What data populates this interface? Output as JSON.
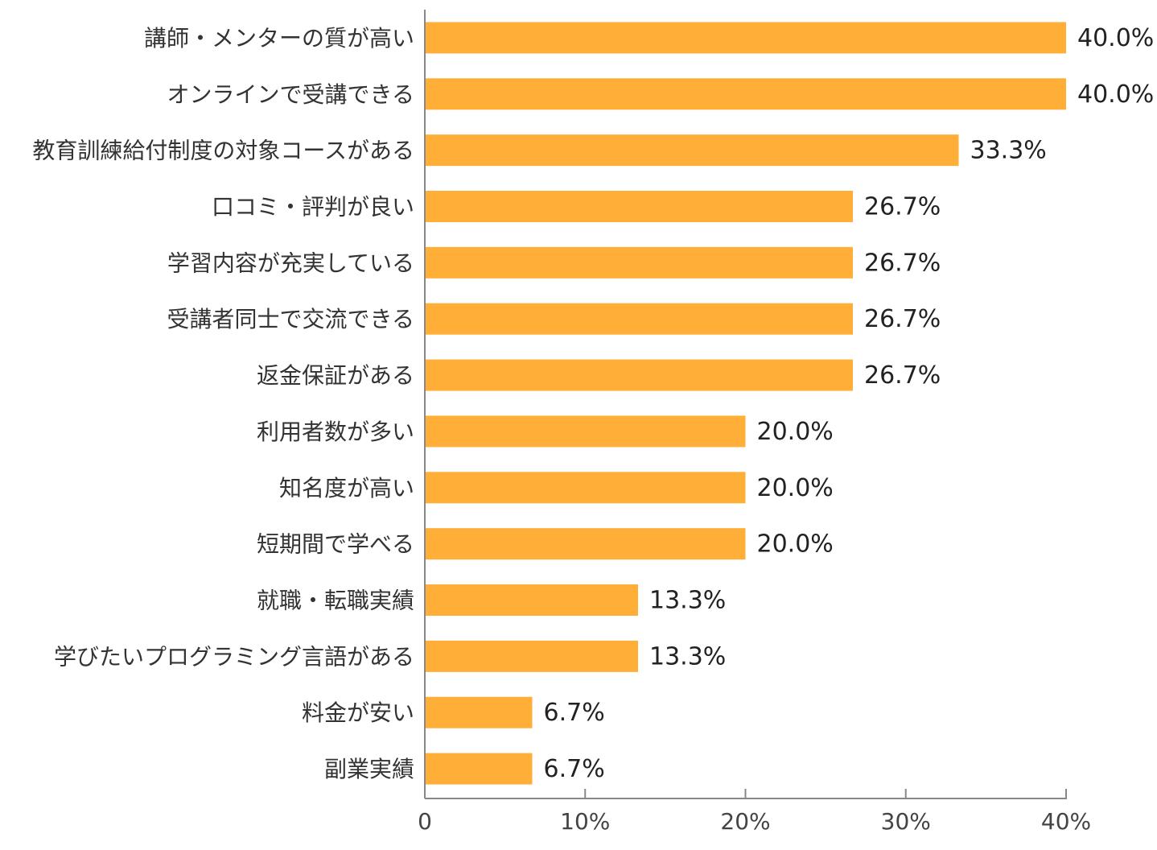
{
  "chart_data": {
    "type": "bar",
    "orientation": "horizontal",
    "categories": [
      "講師・メンターの質が高い",
      "オンラインで受講できる",
      "教育訓練給付制度の対象コースがある",
      "口コミ・評判が良い",
      "学習内容が充実している",
      "受講者同士で交流できる",
      "返金保証がある",
      "利用者数が多い",
      "知名度が高い",
      "短期間で学べる",
      "就職・転職実績",
      "学びたいプログラミング言語がある",
      "料金が安い",
      "副業実績"
    ],
    "values": [
      40.0,
      40.0,
      33.3,
      26.7,
      26.7,
      26.7,
      26.7,
      20.0,
      20.0,
      20.0,
      13.3,
      13.3,
      6.7,
      6.7
    ],
    "value_labels": [
      "40.0%",
      "40.0%",
      "33.3%",
      "26.7%",
      "26.7%",
      "26.7%",
      "26.7%",
      "20.0%",
      "20.0%",
      "20.0%",
      "13.3%",
      "13.3%",
      "6.7%",
      "6.7%"
    ],
    "xlim": [
      0,
      40
    ],
    "xticks": [
      0,
      10,
      20,
      30,
      40
    ],
    "xtick_labels": [
      "0",
      "10%",
      "20%",
      "30%",
      "40%"
    ],
    "title": "",
    "xlabel": "",
    "ylabel": "",
    "grid": false,
    "legend": "none",
    "bar_color": "#ffaf38"
  }
}
